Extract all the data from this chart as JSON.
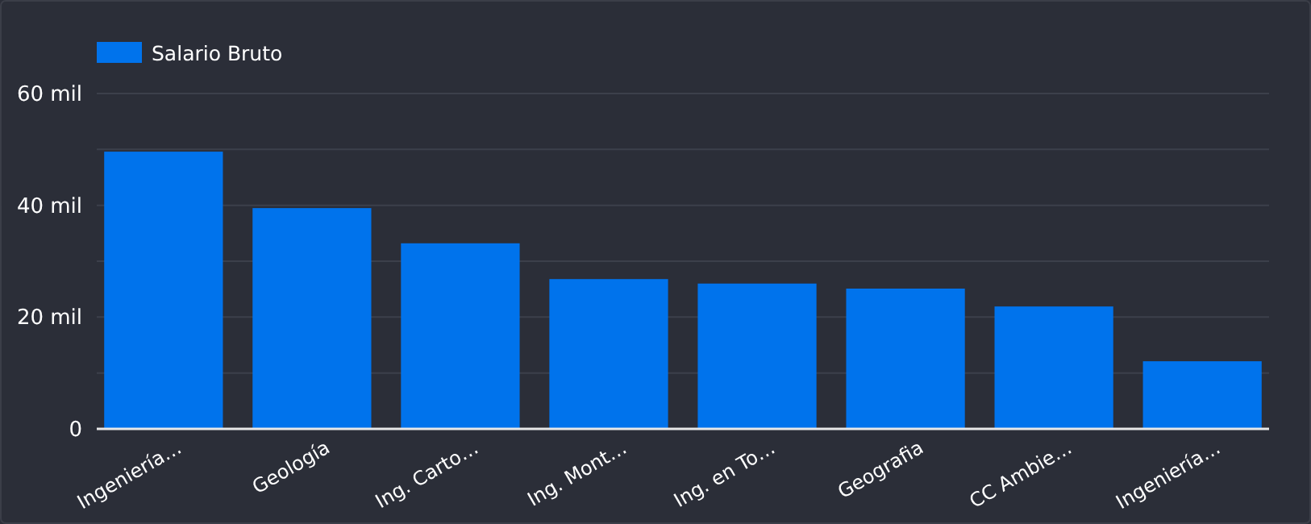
{
  "chart_data": {
    "type": "bar",
    "categories": [
      "Ingeniería…",
      "Geología",
      "Ing. Carto…",
      "Ing. Mont…",
      "Ing. en To…",
      "Geografia",
      "CC Ambie…",
      "Ingeniería…"
    ],
    "series": [
      {
        "name": "Salario Bruto",
        "color": "#0073ec",
        "values": [
          49.6,
          39.5,
          33.2,
          26.8,
          26.0,
          25.1,
          21.9,
          12.1
        ]
      }
    ],
    "ylim": [
      0,
      60
    ],
    "yticks": [
      {
        "value": 0,
        "label": "0"
      },
      {
        "value": 10,
        "label": null
      },
      {
        "value": 20,
        "label": "20 mil"
      },
      {
        "value": 30,
        "label": null
      },
      {
        "value": 40,
        "label": "40 mil"
      },
      {
        "value": 50,
        "label": null
      },
      {
        "value": 60,
        "label": "60 mil"
      }
    ],
    "grid": true,
    "legend": "top left"
  }
}
